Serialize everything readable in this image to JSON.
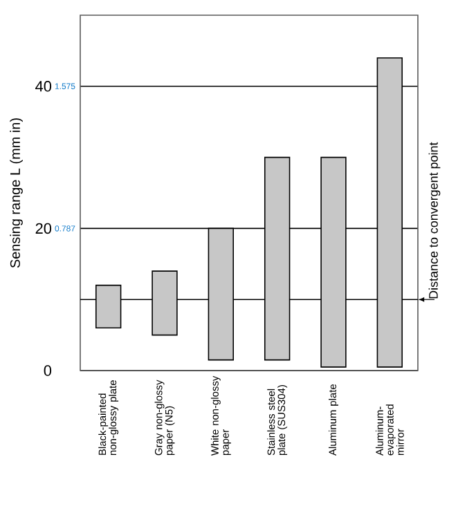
{
  "chart_data": {
    "type": "bar",
    "ylabel": "Sensing range L (mm in)",
    "categories": [
      "Black-painted non-glossy plate",
      "Gray non-glossy paper (N5)",
      "White non-glossy paper",
      "Stainless steel plate (SUS304)",
      "Aluminum plate",
      "Aluminum-evaporated mirror"
    ],
    "base": [
      6,
      5,
      1.5,
      1.5,
      0.5,
      0.5
    ],
    "values": [
      6,
      9,
      18.5,
      28.5,
      29.5,
      43.5
    ],
    "color": "#000000",
    "ylim": [
      0,
      50
    ],
    "yticks": [
      0,
      20,
      40
    ],
    "y2lim": [
      0,
      1.9685
    ],
    "y2ticks": [
      0.787,
      1.575
    ],
    "grid": "y",
    "ref_lines": [
      {
        "axis": "y",
        "value": 10,
        "label": "Distance to convergent point"
      }
    ]
  }
}
